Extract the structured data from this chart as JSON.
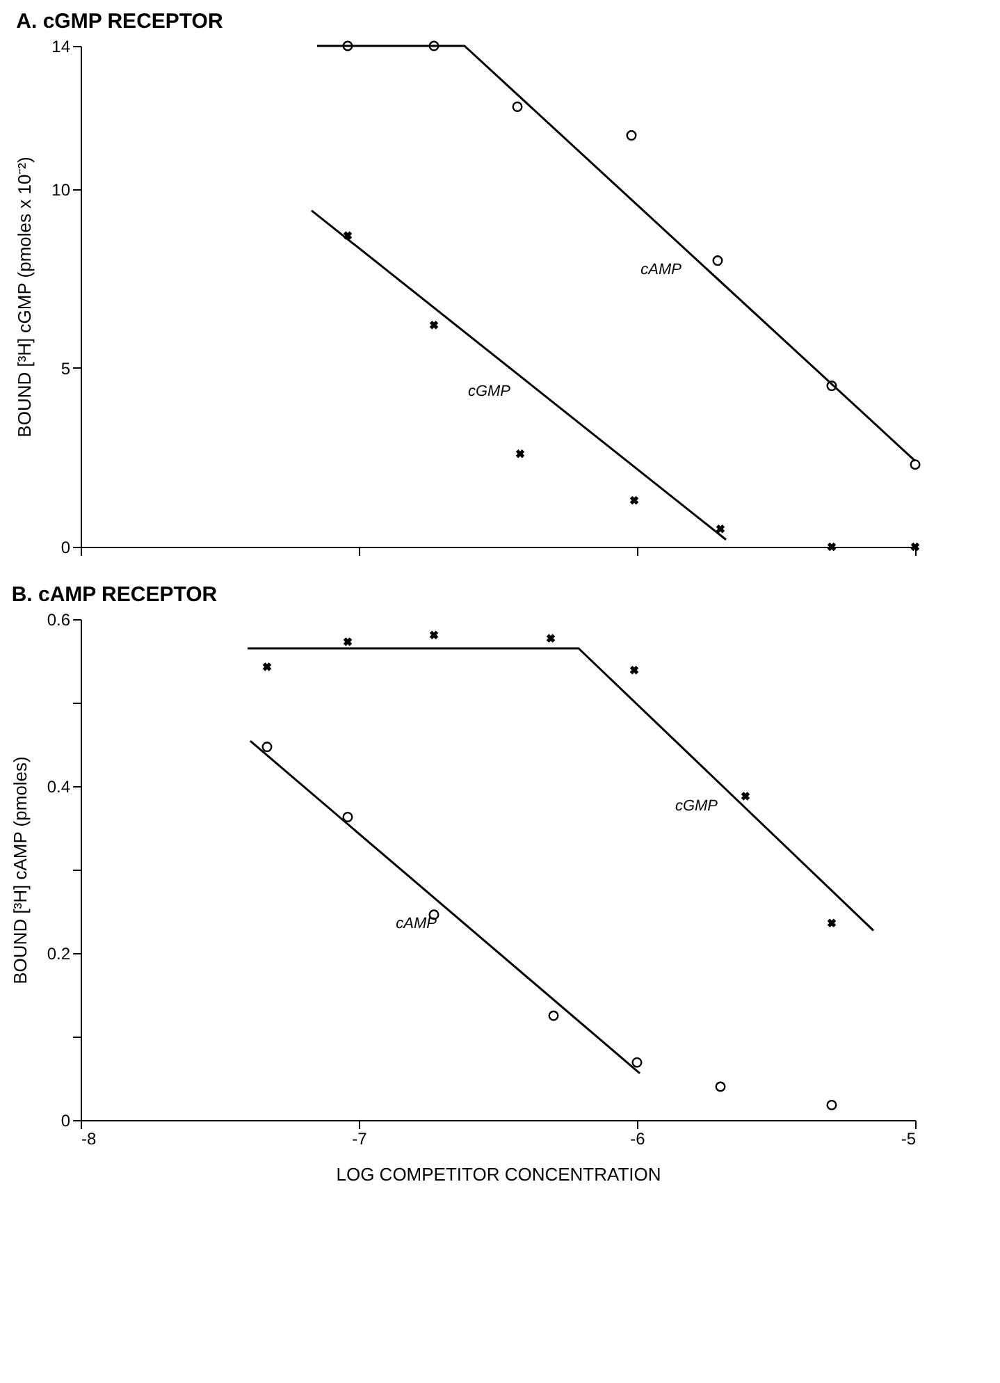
{
  "chart_data": [
    {
      "type": "scatter",
      "title": "A. cGMP RECEPTOR",
      "ylabel": "BOUND [³H] cGMP (pmoles x 10⁻²)",
      "xlim": [
        -8,
        -5
      ],
      "xticks": [
        -8,
        -7,
        -6,
        -5
      ],
      "ylim": [
        0,
        14
      ],
      "yticks": [
        0,
        5,
        10,
        14
      ],
      "tick_labels": "y",
      "grid": false,
      "series": [
        {
          "marker": "circle",
          "color": "#000000",
          "x": [
            -7.04,
            -6.73,
            -6.43,
            -6.02,
            -5.71,
            -5.3,
            -5.0
          ],
          "values": [
            14,
            14,
            12.3,
            11.5,
            8.0,
            4.5,
            2.3
          ]
        },
        {
          "marker": "cross",
          "color": "#000000",
          "x": [
            -7.04,
            -6.73,
            -6.42,
            -6.01,
            -5.7,
            -5.3,
            -5.0
          ],
          "values": [
            8.7,
            6.2,
            2.6,
            1.3,
            0.5,
            0,
            0
          ]
        },
        {
          "type": "line",
          "name": "cAMP",
          "marker": "none",
          "line_style": "solid",
          "color": "#000000",
          "x": [
            -7.15,
            -6.62,
            -5.0
          ],
          "values": [
            14,
            14,
            2.4
          ]
        },
        {
          "type": "line",
          "name": "cGMP",
          "marker": "none",
          "line_style": "solid",
          "color": "#000000",
          "x": [
            -7.17,
            -5.68
          ],
          "values": [
            9.4,
            0.2
          ]
        }
      ]
    },
    {
      "type": "scatter",
      "title": "B. cAMP RECEPTOR",
      "xlabel": "LOG COMPETITOR CONCENTRATION",
      "ylabel": "BOUND [³H] cAMP (pmoles)",
      "xlim": [
        -8,
        -5
      ],
      "xticks": [
        -8,
        -7,
        -6,
        -5
      ],
      "ylim": [
        0,
        0.6
      ],
      "yticks": [
        0,
        {
          "value": 0.1,
          "label": null
        },
        0.2,
        {
          "value": 0.3,
          "label": null
        },
        0.4,
        {
          "value": 0.5,
          "label": null
        },
        0.6
      ],
      "grid": false,
      "series": [
        {
          "marker": "cross",
          "color": "#000000",
          "x": [
            -7.33,
            -7.04,
            -6.73,
            -6.31,
            -6.01,
            -5.61,
            -5.3
          ],
          "values": [
            0.543,
            0.573,
            0.581,
            0.577,
            0.539,
            0.388,
            0.236
          ]
        },
        {
          "marker": "circle",
          "color": "#000000",
          "x": [
            -7.33,
            -7.04,
            -6.73,
            -6.3,
            -6.0,
            -5.7,
            -5.3
          ],
          "values": [
            0.447,
            0.363,
            0.246,
            0.125,
            0.069,
            0.04,
            0.018
          ]
        },
        {
          "type": "line",
          "name": "cGMP",
          "marker": "none",
          "line_style": "solid",
          "color": "#000000",
          "x": [
            -7.4,
            -6.21,
            -5.15
          ],
          "values": [
            0.565,
            0.565,
            0.227
          ]
        },
        {
          "type": "line",
          "name": "cAMP",
          "marker": "none",
          "line_style": "solid",
          "color": "#000000",
          "x": [
            -7.39,
            -5.99
          ],
          "values": [
            0.454,
            0.056
          ]
        }
      ]
    }
  ]
}
